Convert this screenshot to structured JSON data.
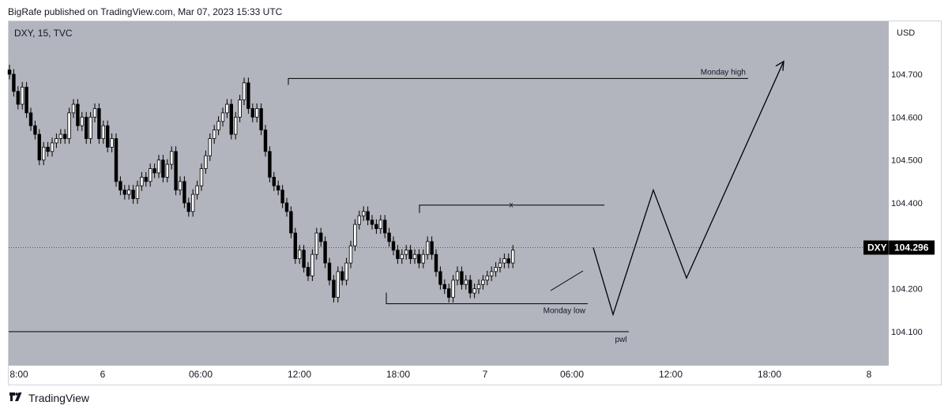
{
  "header": {
    "published_text": "BigRafe published on TradingView.com, Mar 07, 2023 15:33 UTC"
  },
  "footer": {
    "brand": "TradingView",
    "logo_icon": "tradingview-logo-icon"
  },
  "colors": {
    "plot_bg": "#b2b5be",
    "candle_up_fill": "#ffffff",
    "candle_down_fill": "#000000",
    "candle_outline": "#000000",
    "line": "#000000",
    "price_label_bg": "#000000",
    "price_label_text": "#ffffff"
  },
  "chart_data": {
    "type": "candlestick",
    "symbol_info": "DXY, 15, TVC",
    "currency": "USD",
    "y_axis": {
      "ticks": [
        "104.700",
        "104.600",
        "104.500",
        "104.400",
        "104.200",
        "104.100"
      ],
      "ylim": [
        104.05,
        104.78
      ]
    },
    "x_axis": {
      "ticks": [
        "8:00",
        "6",
        "06:00",
        "12:00",
        "18:00",
        "7",
        "06:00",
        "12:00",
        "18:00",
        "8"
      ]
    },
    "current_price": {
      "symbol": "DXY",
      "value": "104.296"
    },
    "annotations": {
      "monday_high": {
        "label": "Monday high",
        "price": 104.69
      },
      "monday_low": {
        "label": "Monday low",
        "price": 104.165
      },
      "x_level": {
        "label": "x",
        "price": 104.395
      },
      "pwl": {
        "label": "pwl",
        "price": 104.1
      }
    },
    "projection_path_prices": [
      104.296,
      104.14,
      104.43,
      104.225,
      104.73
    ],
    "closes": [
      104.7,
      104.66,
      104.63,
      104.67,
      104.61,
      104.58,
      104.56,
      104.5,
      104.53,
      104.52,
      104.54,
      104.55,
      104.56,
      104.55,
      104.61,
      104.63,
      104.58,
      104.6,
      104.55,
      104.6,
      104.62,
      104.55,
      104.58,
      104.53,
      104.55,
      104.45,
      104.43,
      104.42,
      104.43,
      104.41,
      104.44,
      104.46,
      104.45,
      104.48,
      104.47,
      104.5,
      104.46,
      104.49,
      104.52,
      104.43,
      104.45,
      104.4,
      104.38,
      104.42,
      104.44,
      104.48,
      104.51,
      104.55,
      104.57,
      104.59,
      104.61,
      104.63,
      104.56,
      104.6,
      104.64,
      104.68,
      104.62,
      104.6,
      104.62,
      104.57,
      104.52,
      104.46,
      104.44,
      104.43,
      104.4,
      104.38,
      104.33,
      104.27,
      104.29,
      104.25,
      104.23,
      104.28,
      104.33,
      104.31,
      104.26,
      104.22,
      104.18,
      104.24,
      104.22,
      104.26,
      104.3,
      104.35,
      104.37,
      104.38,
      104.36,
      104.35,
      104.34,
      104.36,
      104.33,
      104.31,
      104.29,
      104.27,
      104.28,
      104.29,
      104.27,
      104.28,
      104.26,
      104.28,
      104.31,
      104.28,
      104.24,
      104.21,
      104.2,
      104.18,
      104.22,
      104.24,
      104.21,
      104.22,
      104.19,
      104.2,
      104.21,
      104.22,
      104.23,
      104.24,
      104.25,
      104.26,
      104.27,
      104.26,
      104.29
    ]
  }
}
